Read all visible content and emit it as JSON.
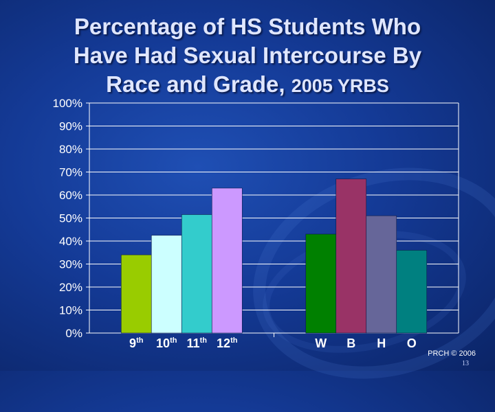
{
  "title": {
    "line1": "Percentage of HS Students Who",
    "line2": "Have Had Sexual Intercourse By",
    "line3_main": "Race and Grade,",
    "line3_small": "2005 YRBS"
  },
  "footer": {
    "credit": "PRCH © 2006",
    "page_number": "13"
  },
  "chart_data": {
    "type": "bar",
    "ylim": [
      0,
      100
    ],
    "ytick_labels": [
      "0%",
      "10%",
      "20%",
      "30%",
      "40%",
      "50%",
      "60%",
      "70%",
      "80%",
      "90%",
      "100%"
    ],
    "grid": true,
    "groups": [
      {
        "bars": [
          {
            "label": "9",
            "sup": "th",
            "value": 34,
            "color": "#99cc00"
          },
          {
            "label": "10",
            "sup": "th",
            "value": 42.5,
            "color": "#ccffff"
          },
          {
            "label": "11",
            "sup": "th",
            "value": 51.5,
            "color": "#33cccc"
          },
          {
            "label": "12",
            "sup": "th",
            "value": 63,
            "color": "#cc99ff"
          }
        ]
      },
      {
        "bars": [
          {
            "label": "W",
            "sup": "",
            "value": 43,
            "color": "#008000"
          },
          {
            "label": "B",
            "sup": "",
            "value": 67,
            "color": "#993366"
          },
          {
            "label": "H",
            "sup": "",
            "value": 51,
            "color": "#666699"
          },
          {
            "label": "O",
            "sup": "",
            "value": 36,
            "color": "#008080"
          }
        ]
      }
    ]
  }
}
